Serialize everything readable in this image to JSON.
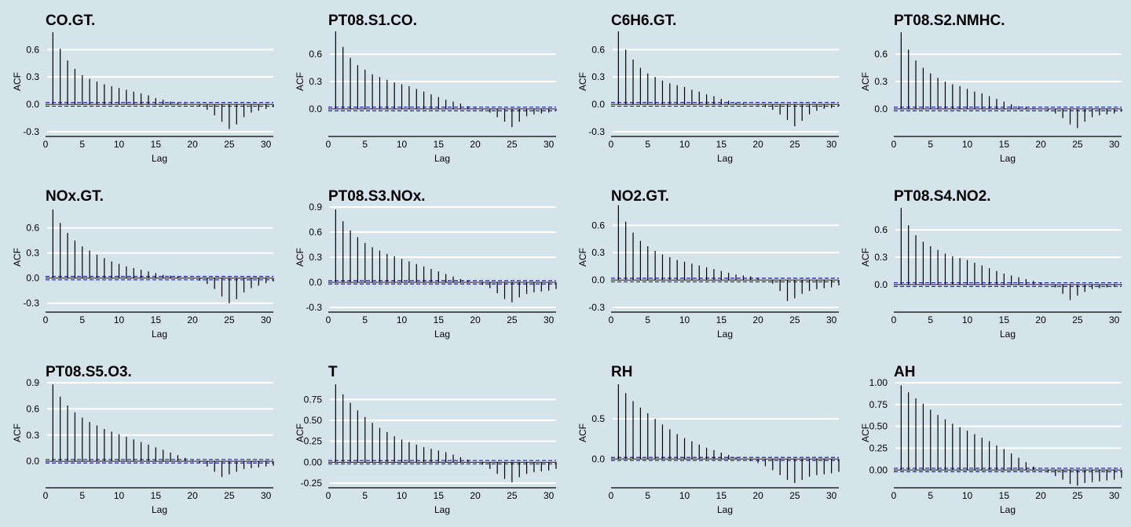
{
  "theme": {
    "background": "#d5e4eb",
    "gridline": "#ffffff",
    "bar": "#000000",
    "confidence_band": "#1f1fb4",
    "text": "#000000"
  },
  "chart_data": [
    {
      "type": "bar",
      "title": "CO.GT.",
      "xlabel": "Lag",
      "ylabel": "ACF",
      "xlim": [
        0,
        31
      ],
      "ylim": [
        -0.3,
        0.8
      ],
      "yticks": [
        -0.3,
        0.0,
        0.3,
        0.6
      ],
      "yticklabels": [
        "-0.3",
        "0.0",
        "0.3",
        "0.6"
      ],
      "xticks": [
        0,
        5,
        10,
        15,
        20,
        25,
        30
      ],
      "xticklabels": [
        "0",
        "5",
        "10",
        "15",
        "20",
        "25",
        "30"
      ],
      "grid": "horizontal",
      "conf": 0.02,
      "lags": [
        1,
        2,
        3,
        4,
        5,
        6,
        7,
        8,
        9,
        10,
        11,
        12,
        13,
        14,
        15,
        16,
        17,
        18,
        19,
        20,
        21,
        22,
        23,
        24,
        25,
        26,
        27,
        28,
        29,
        30,
        31
      ],
      "values": [
        0.79,
        0.61,
        0.48,
        0.39,
        0.32,
        0.28,
        0.25,
        0.22,
        0.2,
        0.18,
        0.16,
        0.14,
        0.12,
        0.1,
        0.07,
        0.05,
        0.03,
        0.02,
        0.01,
        0.0,
        -0.02,
        -0.06,
        -0.12,
        -0.19,
        -0.27,
        -0.22,
        -0.14,
        -0.09,
        -0.07,
        -0.05,
        -0.03
      ]
    },
    {
      "type": "bar",
      "title": "PT08.S1.CO.",
      "xlabel": "Lag",
      "ylabel": "ACF",
      "xlim": [
        0,
        31
      ],
      "ylim": [
        -0.25,
        0.85
      ],
      "yticks": [
        0.0,
        0.3,
        0.6
      ],
      "yticklabels": [
        "0.0",
        "0.3",
        "0.6"
      ],
      "xticks": [
        0,
        5,
        10,
        15,
        20,
        25,
        30
      ],
      "xticklabels": [
        "0",
        "5",
        "10",
        "15",
        "20",
        "25",
        "30"
      ],
      "grid": "horizontal",
      "conf": 0.02,
      "lags": [
        1,
        2,
        3,
        4,
        5,
        6,
        7,
        8,
        9,
        10,
        11,
        12,
        13,
        14,
        15,
        16,
        17,
        18,
        19,
        20,
        21,
        22,
        23,
        24,
        25,
        26,
        27,
        28,
        29,
        30,
        31
      ],
      "values": [
        0.85,
        0.68,
        0.56,
        0.48,
        0.43,
        0.38,
        0.35,
        0.32,
        0.29,
        0.27,
        0.25,
        0.22,
        0.19,
        0.16,
        0.13,
        0.1,
        0.08,
        0.06,
        0.03,
        0.01,
        -0.01,
        -0.04,
        -0.09,
        -0.14,
        -0.2,
        -0.14,
        -0.08,
        -0.06,
        -0.05,
        -0.04,
        -0.02
      ]
    },
    {
      "type": "bar",
      "title": "C6H6.GT.",
      "xlabel": "Lag",
      "ylabel": "ACF",
      "xlim": [
        0,
        31
      ],
      "ylim": [
        -0.3,
        0.8
      ],
      "yticks": [
        -0.3,
        0.0,
        0.3,
        0.6
      ],
      "yticklabels": [
        "-0.3",
        "0.0",
        "0.3",
        "0.6"
      ],
      "xticks": [
        0,
        5,
        10,
        15,
        20,
        25,
        30
      ],
      "xticklabels": [
        "0",
        "5",
        "10",
        "15",
        "20",
        "25",
        "30"
      ],
      "grid": "horizontal",
      "conf": 0.02,
      "lags": [
        1,
        2,
        3,
        4,
        5,
        6,
        7,
        8,
        9,
        10,
        11,
        12,
        13,
        14,
        15,
        16,
        17,
        18,
        19,
        20,
        21,
        22,
        23,
        24,
        25,
        26,
        27,
        28,
        29,
        30,
        31
      ],
      "values": [
        0.8,
        0.6,
        0.49,
        0.4,
        0.34,
        0.3,
        0.26,
        0.23,
        0.21,
        0.19,
        0.16,
        0.14,
        0.11,
        0.09,
        0.06,
        0.04,
        0.02,
        0.01,
        0.0,
        -0.01,
        -0.03,
        -0.06,
        -0.11,
        -0.17,
        -0.24,
        -0.18,
        -0.11,
        -0.07,
        -0.05,
        -0.04,
        -0.02
      ]
    },
    {
      "type": "bar",
      "title": "PT08.S2.NMHC.",
      "xlabel": "Lag",
      "ylabel": "ACF",
      "xlim": [
        0,
        31
      ],
      "ylim": [
        -0.25,
        0.85
      ],
      "yticks": [
        0.0,
        0.3,
        0.6
      ],
      "yticklabels": [
        "0.0",
        "0.3",
        "0.6"
      ],
      "xticks": [
        0,
        5,
        10,
        15,
        20,
        25,
        30
      ],
      "xticklabels": [
        "0",
        "5",
        "10",
        "15",
        "20",
        "25",
        "30"
      ],
      "grid": "horizontal",
      "conf": 0.02,
      "lags": [
        1,
        2,
        3,
        4,
        5,
        6,
        7,
        8,
        9,
        10,
        11,
        12,
        13,
        14,
        15,
        16,
        17,
        18,
        19,
        20,
        21,
        22,
        23,
        24,
        25,
        26,
        27,
        28,
        29,
        30,
        31
      ],
      "values": [
        0.84,
        0.65,
        0.53,
        0.45,
        0.39,
        0.34,
        0.3,
        0.27,
        0.25,
        0.22,
        0.19,
        0.17,
        0.14,
        0.11,
        0.08,
        0.05,
        0.03,
        0.02,
        0.01,
        0.0,
        -0.02,
        -0.05,
        -0.1,
        -0.17,
        -0.21,
        -0.14,
        -0.09,
        -0.07,
        -0.06,
        -0.05,
        -0.03
      ]
    },
    {
      "type": "bar",
      "title": "NOx.GT.",
      "xlabel": "Lag",
      "ylabel": "ACF",
      "xlim": [
        0,
        31
      ],
      "ylim": [
        -0.35,
        0.85
      ],
      "yticks": [
        -0.3,
        0.0,
        0.3,
        0.6
      ],
      "yticklabels": [
        "-0.3",
        "0.0",
        "0.3",
        "0.6"
      ],
      "xticks": [
        0,
        5,
        10,
        15,
        20,
        25,
        30
      ],
      "xticklabels": [
        "0",
        "5",
        "10",
        "15",
        "20",
        "25",
        "30"
      ],
      "grid": "horizontal",
      "conf": 0.02,
      "lags": [
        1,
        2,
        3,
        4,
        5,
        6,
        7,
        8,
        9,
        10,
        11,
        12,
        13,
        14,
        15,
        16,
        17,
        18,
        19,
        20,
        21,
        22,
        23,
        24,
        25,
        26,
        27,
        28,
        29,
        30,
        31
      ],
      "values": [
        0.82,
        0.66,
        0.54,
        0.45,
        0.38,
        0.33,
        0.28,
        0.24,
        0.2,
        0.17,
        0.14,
        0.12,
        0.1,
        0.08,
        0.06,
        0.04,
        0.03,
        0.02,
        0.01,
        0.0,
        -0.03,
        -0.07,
        -0.13,
        -0.22,
        -0.3,
        -0.25,
        -0.17,
        -0.12,
        -0.09,
        -0.06,
        -0.04
      ]
    },
    {
      "type": "bar",
      "title": "PT08.S3.NOx.",
      "xlabel": "Lag",
      "ylabel": "ACF",
      "xlim": [
        0,
        31
      ],
      "ylim": [
        -0.3,
        0.9
      ],
      "yticks": [
        -0.3,
        0.0,
        0.3,
        0.6,
        0.9
      ],
      "yticklabels": [
        "-0.3",
        "0.0",
        "0.3",
        "0.6",
        "0.9"
      ],
      "xticks": [
        0,
        5,
        10,
        15,
        20,
        25,
        30
      ],
      "xticklabels": [
        "0",
        "5",
        "10",
        "15",
        "20",
        "25",
        "30"
      ],
      "grid": "horizontal",
      "conf": 0.02,
      "lags": [
        1,
        2,
        3,
        4,
        5,
        6,
        7,
        8,
        9,
        10,
        11,
        12,
        13,
        14,
        15,
        16,
        17,
        18,
        19,
        20,
        21,
        22,
        23,
        24,
        25,
        26,
        27,
        28,
        29,
        30,
        31
      ],
      "values": [
        0.87,
        0.73,
        0.62,
        0.54,
        0.47,
        0.42,
        0.38,
        0.34,
        0.31,
        0.28,
        0.25,
        0.22,
        0.19,
        0.16,
        0.13,
        0.1,
        0.07,
        0.04,
        0.02,
        0.0,
        -0.03,
        -0.07,
        -0.13,
        -0.2,
        -0.24,
        -0.18,
        -0.14,
        -0.12,
        -0.11,
        -0.1,
        -0.08
      ]
    },
    {
      "type": "bar",
      "title": "NO2.GT.",
      "xlabel": "Lag",
      "ylabel": "ACF",
      "xlim": [
        0,
        31
      ],
      "ylim": [
        -0.3,
        0.8
      ],
      "yticks": [
        -0.3,
        0.0,
        0.3,
        0.6
      ],
      "yticklabels": [
        "-0.3",
        "0.0",
        "0.3",
        "0.6"
      ],
      "xticks": [
        0,
        5,
        10,
        15,
        20,
        25,
        30
      ],
      "xticklabels": [
        "0",
        "5",
        "10",
        "15",
        "20",
        "25",
        "30"
      ],
      "grid": "horizontal",
      "conf": 0.02,
      "lags": [
        1,
        2,
        3,
        4,
        5,
        6,
        7,
        8,
        9,
        10,
        11,
        12,
        13,
        14,
        15,
        16,
        17,
        18,
        19,
        20,
        21,
        22,
        23,
        24,
        25,
        26,
        27,
        28,
        29,
        30,
        31
      ],
      "values": [
        0.82,
        0.64,
        0.52,
        0.43,
        0.37,
        0.32,
        0.28,
        0.25,
        0.22,
        0.2,
        0.18,
        0.16,
        0.14,
        0.12,
        0.1,
        0.08,
        0.06,
        0.05,
        0.04,
        0.02,
        0.0,
        -0.04,
        -0.12,
        -0.23,
        -0.2,
        -0.15,
        -0.12,
        -0.1,
        -0.09,
        -0.08,
        -0.06
      ]
    },
    {
      "type": "bar",
      "title": "PT08.S4.NO2.",
      "xlabel": "Lag",
      "ylabel": "ACF",
      "xlim": [
        0,
        31
      ],
      "ylim": [
        -0.25,
        0.85
      ],
      "yticks": [
        0.0,
        0.3,
        0.6
      ],
      "yticklabels": [
        "0.0",
        "0.3",
        "0.6"
      ],
      "xticks": [
        0,
        5,
        10,
        15,
        20,
        25,
        30
      ],
      "xticklabels": [
        "0",
        "5",
        "10",
        "15",
        "20",
        "25",
        "30"
      ],
      "grid": "horizontal",
      "conf": 0.02,
      "lags": [
        1,
        2,
        3,
        4,
        5,
        6,
        7,
        8,
        9,
        10,
        11,
        12,
        13,
        14,
        15,
        16,
        17,
        18,
        19,
        20,
        21,
        22,
        23,
        24,
        25,
        26,
        27,
        28,
        29,
        30,
        31
      ],
      "values": [
        0.84,
        0.65,
        0.54,
        0.47,
        0.42,
        0.38,
        0.34,
        0.31,
        0.29,
        0.27,
        0.24,
        0.21,
        0.18,
        0.15,
        0.12,
        0.1,
        0.08,
        0.06,
        0.04,
        0.02,
        0.0,
        -0.03,
        -0.1,
        -0.17,
        -0.12,
        -0.08,
        -0.05,
        -0.04,
        -0.03,
        -0.02,
        -0.01
      ]
    },
    {
      "type": "bar",
      "title": "PT08.S5.O3.",
      "xlabel": "Lag",
      "ylabel": "ACF",
      "xlim": [
        0,
        31
      ],
      "ylim": [
        -0.25,
        0.9
      ],
      "yticks": [
        0.0,
        0.3,
        0.6,
        0.9
      ],
      "yticklabels": [
        "0.0",
        "0.3",
        "0.6",
        "0.9"
      ],
      "xticks": [
        0,
        5,
        10,
        15,
        20,
        25,
        30
      ],
      "xticklabels": [
        "0",
        "5",
        "10",
        "15",
        "20",
        "25",
        "30"
      ],
      "grid": "horizontal",
      "conf": 0.02,
      "lags": [
        1,
        2,
        3,
        4,
        5,
        6,
        7,
        8,
        9,
        10,
        11,
        12,
        13,
        14,
        15,
        16,
        17,
        18,
        19,
        20,
        21,
        22,
        23,
        24,
        25,
        26,
        27,
        28,
        29,
        30,
        31
      ],
      "values": [
        0.88,
        0.74,
        0.64,
        0.56,
        0.5,
        0.45,
        0.41,
        0.37,
        0.34,
        0.31,
        0.28,
        0.25,
        0.22,
        0.19,
        0.16,
        0.13,
        0.1,
        0.07,
        0.04,
        0.01,
        -0.02,
        -0.06,
        -0.12,
        -0.18,
        -0.15,
        -0.12,
        -0.09,
        -0.08,
        -0.07,
        -0.06,
        -0.05
      ]
    },
    {
      "type": "bar",
      "title": "T",
      "xlabel": "Lag",
      "ylabel": "ACF",
      "xlim": [
        0,
        31
      ],
      "ylim": [
        -0.25,
        0.95
      ],
      "yticks": [
        -0.25,
        0.0,
        0.25,
        0.5,
        0.75
      ],
      "yticklabels": [
        "-0.25",
        "0.00",
        "0.25",
        "0.50",
        "0.75"
      ],
      "xticks": [
        0,
        5,
        10,
        15,
        20,
        25,
        30
      ],
      "xticklabels": [
        "0",
        "5",
        "10",
        "15",
        "20",
        "25",
        "30"
      ],
      "grid": "horizontal",
      "conf": 0.02,
      "lags": [
        1,
        2,
        3,
        4,
        5,
        6,
        7,
        8,
        9,
        10,
        11,
        12,
        13,
        14,
        15,
        16,
        17,
        18,
        19,
        20,
        21,
        22,
        23,
        24,
        25,
        26,
        27,
        28,
        29,
        30,
        31
      ],
      "values": [
        0.93,
        0.81,
        0.71,
        0.62,
        0.54,
        0.47,
        0.41,
        0.36,
        0.31,
        0.27,
        0.24,
        0.21,
        0.18,
        0.16,
        0.14,
        0.12,
        0.09,
        0.06,
        0.03,
        0.0,
        -0.03,
        -0.08,
        -0.14,
        -0.2,
        -0.24,
        -0.18,
        -0.14,
        -0.12,
        -0.11,
        -0.1,
        -0.08
      ]
    },
    {
      "type": "bar",
      "title": "RH",
      "xlabel": "Lag",
      "ylabel": "ACF",
      "xlim": [
        0,
        31
      ],
      "ylim": [
        -0.3,
        0.95
      ],
      "yticks": [
        0.0,
        0.5
      ],
      "yticklabels": [
        "0.0",
        "0.5"
      ],
      "xticks": [
        0,
        5,
        10,
        15,
        20,
        25,
        30
      ],
      "xticklabels": [
        "0",
        "5",
        "10",
        "15",
        "20",
        "25",
        "30"
      ],
      "grid": "horizontal",
      "conf": 0.02,
      "lags": [
        1,
        2,
        3,
        4,
        5,
        6,
        7,
        8,
        9,
        10,
        11,
        12,
        13,
        14,
        15,
        16,
        17,
        18,
        19,
        20,
        21,
        22,
        23,
        24,
        25,
        26,
        27,
        28,
        29,
        30,
        31
      ],
      "values": [
        0.93,
        0.82,
        0.72,
        0.64,
        0.57,
        0.5,
        0.43,
        0.37,
        0.31,
        0.26,
        0.22,
        0.18,
        0.14,
        0.11,
        0.08,
        0.05,
        0.02,
        0.0,
        -0.02,
        -0.05,
        -0.09,
        -0.14,
        -0.2,
        -0.26,
        -0.3,
        -0.26,
        -0.22,
        -0.2,
        -0.19,
        -0.18,
        -0.16
      ]
    },
    {
      "type": "bar",
      "title": "AH",
      "xlabel": "Lag",
      "ylabel": "ACF",
      "xlim": [
        0,
        31
      ],
      "ylim": [
        -0.15,
        1.0
      ],
      "yticks": [
        0.0,
        0.25,
        0.5,
        0.75,
        1.0
      ],
      "yticklabels": [
        "0.00",
        "0.25",
        "0.50",
        "0.75",
        "1.00"
      ],
      "xticks": [
        0,
        5,
        10,
        15,
        20,
        25,
        30
      ],
      "xticklabels": [
        "0",
        "5",
        "10",
        "15",
        "20",
        "25",
        "30"
      ],
      "grid": "horizontal",
      "conf": 0.02,
      "lags": [
        1,
        2,
        3,
        4,
        5,
        6,
        7,
        8,
        9,
        10,
        11,
        12,
        13,
        14,
        15,
        16,
        17,
        18,
        19,
        20,
        21,
        22,
        23,
        24,
        25,
        26,
        27,
        28,
        29,
        30,
        31
      ],
      "values": [
        0.97,
        0.89,
        0.82,
        0.76,
        0.69,
        0.63,
        0.58,
        0.53,
        0.49,
        0.45,
        0.41,
        0.37,
        0.33,
        0.28,
        0.24,
        0.19,
        0.14,
        0.09,
        0.04,
        0.0,
        -0.03,
        -0.07,
        -0.11,
        -0.16,
        -0.18,
        -0.15,
        -0.14,
        -0.13,
        -0.12,
        -0.11,
        -0.09
      ]
    }
  ]
}
